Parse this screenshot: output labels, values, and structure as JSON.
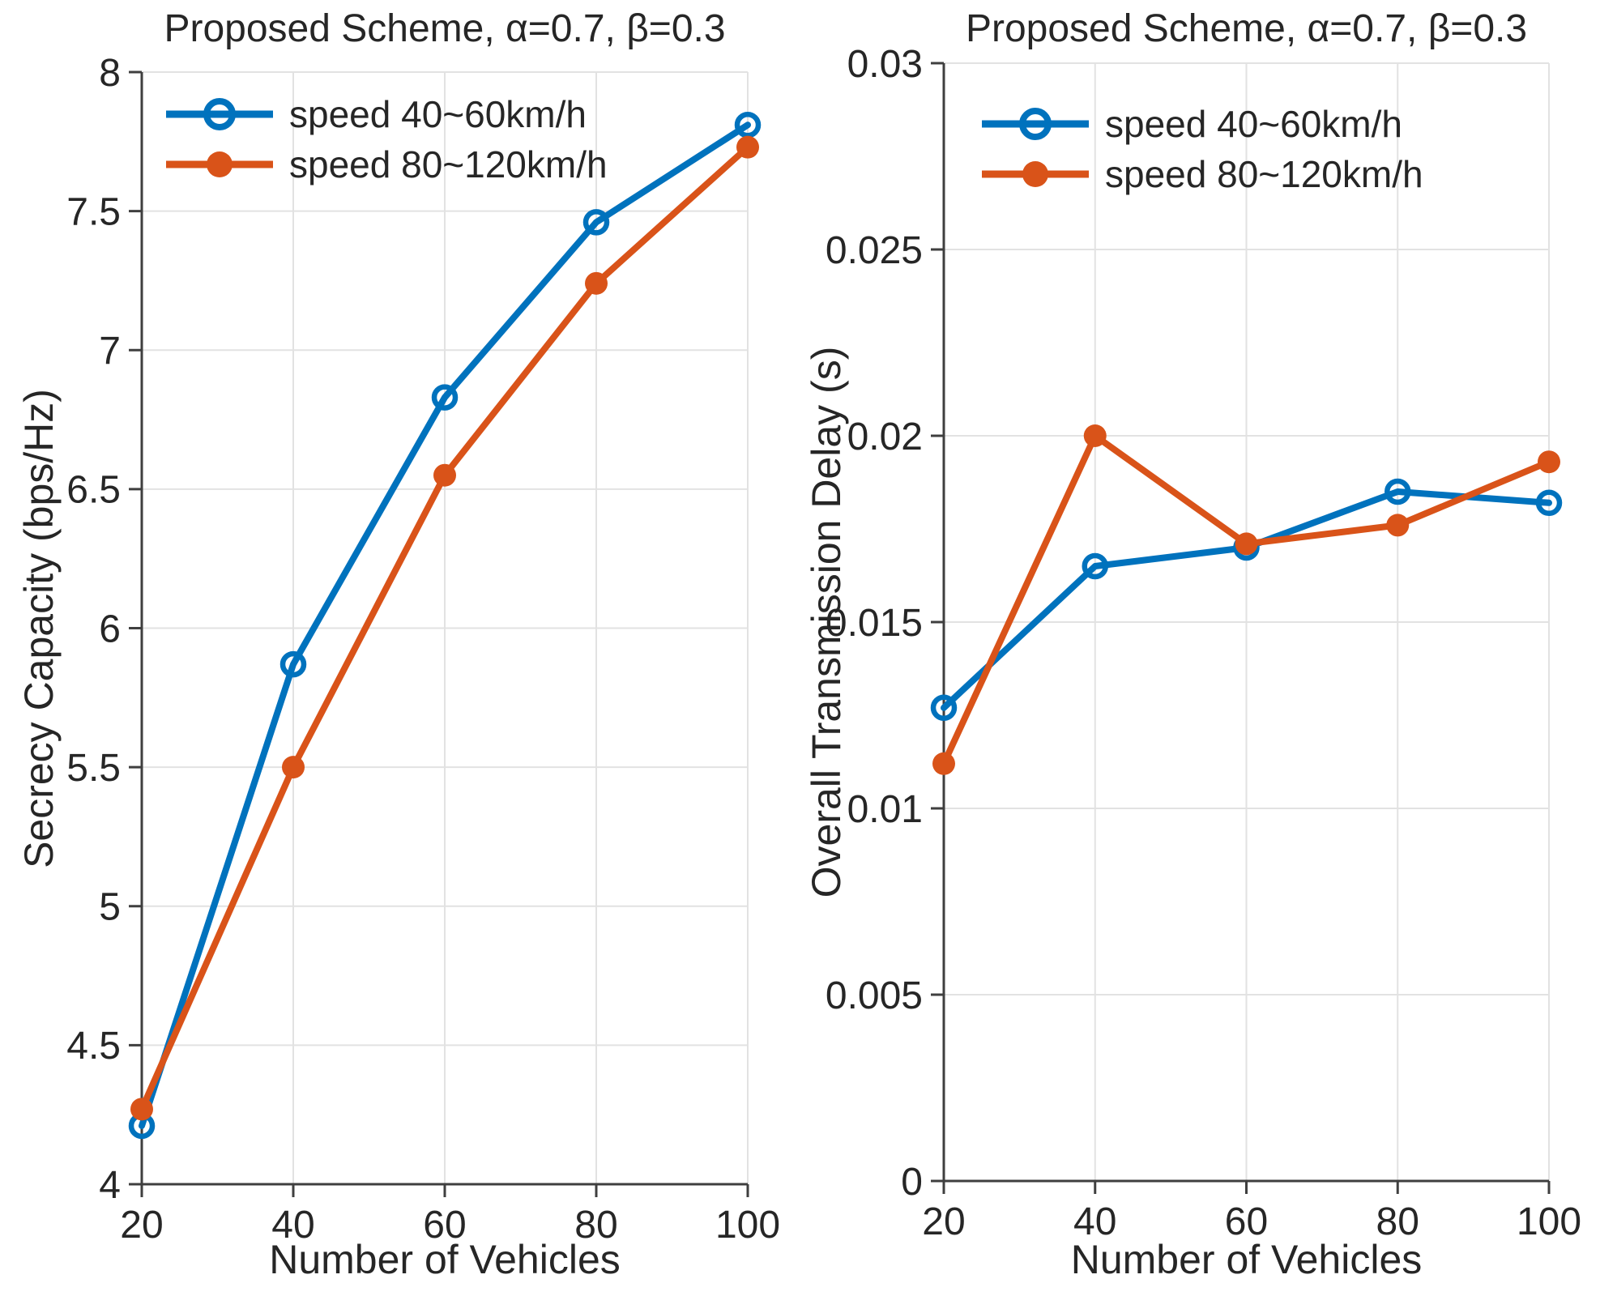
{
  "figure": {
    "background": "#ffffff",
    "text_color": "#262626",
    "grid_color": "#e2e2e2",
    "axis_color": "#3f3f3f"
  },
  "chart_data": [
    {
      "type": "line",
      "title": "Proposed Scheme, α=0.7, β=0.3",
      "xlabel": "Number of Vehicles",
      "ylabel": "Secrecy Capacity (bps/Hz)",
      "grid": true,
      "legend_position": "top-left",
      "x": [
        20,
        40,
        60,
        80,
        100
      ],
      "xlim": [
        20,
        100
      ],
      "ylim": [
        4,
        8
      ],
      "xticks": [
        20,
        40,
        60,
        80,
        100
      ],
      "xtick_labels": [
        "20",
        "40",
        "60",
        "80",
        "100"
      ],
      "yticks": [
        4,
        4.5,
        5,
        5.5,
        6,
        6.5,
        7,
        7.5,
        8
      ],
      "ytick_labels": [
        "4",
        "4.5",
        "5",
        "5.5",
        "6",
        "6.5",
        "7",
        "7.5",
        "8"
      ],
      "series": [
        {
          "name": "speed 40~60km/h",
          "color": "#0072BD",
          "marker": "open-circle",
          "values": [
            4.21,
            5.87,
            6.83,
            7.46,
            7.81
          ]
        },
        {
          "name": "speed 80~120km/h",
          "color": "#D95319",
          "marker": "filled-circle",
          "values": [
            4.27,
            5.5,
            6.55,
            7.24,
            7.73
          ]
        }
      ]
    },
    {
      "type": "line",
      "title": "Proposed Scheme, α=0.7, β=0.3",
      "xlabel": "Number of Vehicles",
      "ylabel": "Overall Transmission Delay (s)",
      "grid": true,
      "legend_position": "top-left",
      "x": [
        20,
        40,
        60,
        80,
        100
      ],
      "xlim": [
        20,
        100
      ],
      "ylim": [
        0,
        0.03
      ],
      "xticks": [
        20,
        40,
        60,
        80,
        100
      ],
      "xtick_labels": [
        "20",
        "40",
        "60",
        "80",
        "100"
      ],
      "yticks": [
        0,
        0.005,
        0.01,
        0.015,
        0.02,
        0.025,
        0.03
      ],
      "ytick_labels": [
        "0",
        "0.005",
        "0.01",
        "0.015",
        "0.02",
        "0.025",
        "0.03"
      ],
      "series": [
        {
          "name": "speed 40~60km/h",
          "color": "#0072BD",
          "marker": "open-circle",
          "values": [
            0.0127,
            0.0165,
            0.017,
            0.0185,
            0.0182
          ]
        },
        {
          "name": "speed 80~120km/h",
          "color": "#D95319",
          "marker": "filled-circle",
          "values": [
            0.0112,
            0.02,
            0.0171,
            0.0176,
            0.0193
          ]
        }
      ]
    }
  ]
}
